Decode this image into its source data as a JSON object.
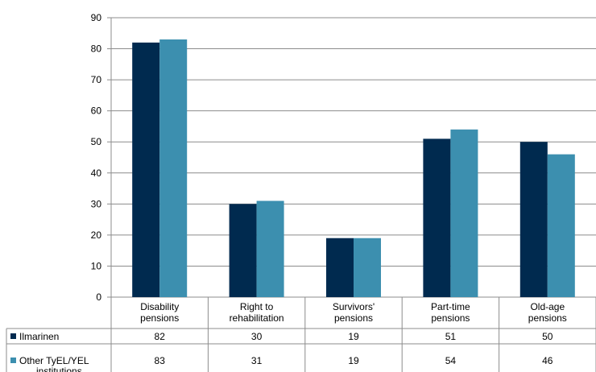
{
  "chart_data": {
    "type": "bar",
    "categories": [
      [
        "Disability",
        "pensions"
      ],
      [
        "Right to",
        "rehabilitation"
      ],
      [
        "Survivors'",
        "pensions"
      ],
      [
        "Part-time",
        "pensions"
      ],
      [
        "Old-age",
        "pensions"
      ]
    ],
    "series": [
      {
        "name": "Ilmarinen",
        "label_lines": [
          "Ilmarinen"
        ],
        "color": "#002a4f",
        "values": [
          82,
          30,
          19,
          51,
          50
        ]
      },
      {
        "name": "Other TyEL/YEL institutions",
        "label_lines": [
          "Other TyEL/YEL",
          "institutions"
        ],
        "color": "#3c8faf",
        "values": [
          83,
          31,
          19,
          54,
          46
        ]
      }
    ],
    "ylim": [
      0,
      90
    ],
    "yticks": [
      0,
      10,
      20,
      30,
      40,
      50,
      60,
      70,
      80,
      90
    ],
    "grid": true,
    "legend": "data-table",
    "title": "",
    "xlabel": "",
    "ylabel": ""
  }
}
